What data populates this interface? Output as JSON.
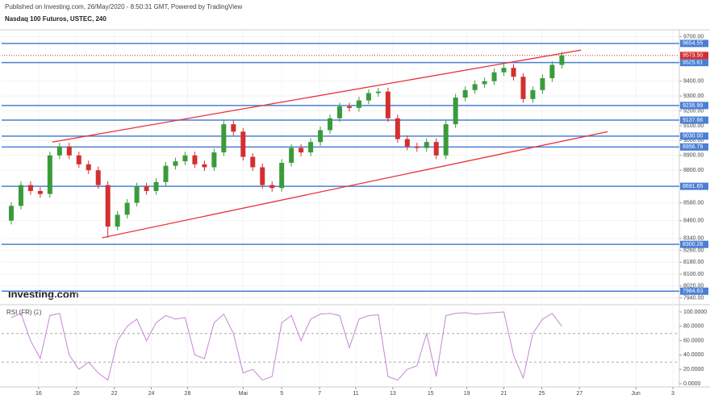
{
  "header": {
    "published": "Published on Investing.com, 26/May/2020 - 8:50:31 GMT, Powered by TradingView",
    "symbol": "Nasdaq 100 Futuros, USTEC, 240",
    "logo": "Investing.com"
  },
  "chart_data": [
    {
      "type": "candlestick",
      "grid": true,
      "up_color": "#3a9b3a",
      "down_color": "#d32f2f",
      "level_color": "#4a7fd4",
      "trend_color": "#e8303a",
      "x": [
        1,
        2,
        3,
        4,
        5,
        6,
        7,
        8,
        9,
        10,
        11,
        12,
        13,
        14,
        15,
        16,
        17,
        18,
        19,
        20,
        21,
        22,
        23,
        24,
        25,
        26,
        27,
        28,
        29,
        30,
        31,
        32,
        33,
        34,
        35,
        36,
        37,
        38,
        39,
        40,
        41,
        42,
        43,
        44,
        45,
        46,
        47,
        48,
        49,
        50,
        51,
        52,
        53,
        54,
        55,
        56,
        57,
        58
      ],
      "open": [
        8460,
        8560,
        8700,
        8660,
        8640,
        8900,
        8960,
        8900,
        8840,
        8800,
        8700,
        8420,
        8500,
        8580,
        8690,
        8660,
        8720,
        8830,
        8860,
        8900,
        8840,
        8820,
        8920,
        9110,
        9060,
        8890,
        8820,
        8700,
        8680,
        8850,
        8950,
        8920,
        8990,
        9070,
        9150,
        9230,
        9220,
        9270,
        9320,
        9330,
        9150,
        9010,
        8960,
        8950,
        8990,
        8900,
        9110,
        9290,
        9340,
        9380,
        9400,
        9460,
        9490,
        9430,
        9280,
        9340,
        9420,
        9510
      ],
      "high": [
        8585,
        8725,
        8725,
        8685,
        8925,
        8985,
        8985,
        8925,
        8865,
        8825,
        8725,
        8525,
        8605,
        8715,
        8715,
        8745,
        8855,
        8885,
        8925,
        8925,
        8865,
        8945,
        9135,
        9135,
        9085,
        8915,
        8845,
        8725,
        8875,
        8975,
        8975,
        9015,
        9095,
        9175,
        9255,
        9255,
        9295,
        9345,
        9355,
        9355,
        9175,
        9035,
        8985,
        9015,
        9015,
        9135,
        9315,
        9365,
        9405,
        9425,
        9485,
        9515,
        9515,
        9455,
        9365,
        9445,
        9535,
        9598.5
      ],
      "low": [
        8435,
        8535,
        8635,
        8615,
        8615,
        8875,
        8875,
        8815,
        8775,
        8675,
        8345,
        8395,
        8475,
        8555,
        8635,
        8635,
        8695,
        8805,
        8835,
        8815,
        8795,
        8795,
        8895,
        9035,
        8865,
        8795,
        8675,
        8655,
        8655,
        8825,
        8895,
        8895,
        8965,
        9045,
        9125,
        9195,
        9195,
        9245,
        9295,
        9125,
        8985,
        8935,
        8925,
        8925,
        8875,
        8875,
        9085,
        9265,
        9315,
        9355,
        9375,
        9435,
        9405,
        9255,
        9255,
        9315,
        9395,
        9485
      ],
      "close": [
        8560,
        8700,
        8660,
        8640,
        8900,
        8960,
        8900,
        8840,
        8800,
        8700,
        8420,
        8500,
        8580,
        8690,
        8660,
        8720,
        8830,
        8860,
        8900,
        8840,
        8820,
        8920,
        9110,
        9060,
        8890,
        8820,
        8700,
        8680,
        8850,
        8950,
        8920,
        8990,
        9070,
        9150,
        9230,
        9220,
        9270,
        9320,
        9330,
        9150,
        9010,
        8960,
        8950,
        8990,
        8900,
        9110,
        9290,
        9340,
        9380,
        9400,
        9460,
        9490,
        9430,
        9280,
        9340,
        9420,
        9510,
        9573.5
      ],
      "xlim": [
        0,
        70
      ],
      "ylim": [
        7910,
        9730
      ],
      "yticks": [
        {
          "value": 9700,
          "label": "9700.00"
        },
        {
          "value": 9400,
          "label": "9400.00"
        },
        {
          "value": 9300,
          "label": "9300.00"
        },
        {
          "value": 9200,
          "label": "9200.00"
        },
        {
          "value": 9100,
          "label": "9100.00"
        },
        {
          "value": 9000,
          "label": "9000.00"
        },
        {
          "value": 8900,
          "label": "8900.00"
        },
        {
          "value": 8800,
          "label": "8800.00"
        },
        {
          "value": 8580,
          "label": "8580.00"
        },
        {
          "value": 8460,
          "label": "8460.00"
        },
        {
          "value": 8340,
          "label": "8340.00"
        },
        {
          "value": 8260,
          "label": "8260.00"
        },
        {
          "value": 8180,
          "label": "8180.00"
        },
        {
          "value": 8100,
          "label": "8100.00"
        },
        {
          "value": 8020,
          "label": "8020.00"
        },
        {
          "value": 7940,
          "label": "7940.00"
        }
      ],
      "xticks": [
        {
          "value": 3.83,
          "label": "16"
        },
        {
          "value": 7.75,
          "label": "20"
        },
        {
          "value": 11.67,
          "label": "22"
        },
        {
          "value": 15.5,
          "label": "24"
        },
        {
          "value": 19.25,
          "label": "28"
        },
        {
          "value": 25,
          "label": "Mai"
        },
        {
          "value": 29,
          "label": "5"
        },
        {
          "value": 32.92,
          "label": "7"
        },
        {
          "value": 36.67,
          "label": "11"
        },
        {
          "value": 40.5,
          "label": "13"
        },
        {
          "value": 44.42,
          "label": "15"
        },
        {
          "value": 48.17,
          "label": "19"
        },
        {
          "value": 52,
          "label": "21"
        },
        {
          "value": 55.92,
          "label": "25"
        },
        {
          "value": 59.83,
          "label": "27"
        },
        {
          "value": 65.67,
          "label": "Jun"
        },
        {
          "value": 69.5,
          "label": "3"
        }
      ],
      "levels": [
        9654.55,
        9525.61,
        9235.99,
        9137.66,
        9030,
        8956.79,
        8691.65,
        8300.28,
        7984.63
      ],
      "level_labels": [
        "9654.55",
        "9525.61",
        "9235.99",
        "9137.66",
        "9030.00",
        "8956.79",
        "8691.65",
        "8300.28",
        "7984.63"
      ],
      "last_price": 9573.5,
      "last_price_label": "9573.50",
      "trendlines": [
        {
          "x": [
            5.25,
            60
          ],
          "y": [
            8990,
            9610
          ]
        },
        {
          "x": [
            10.42,
            62.75
          ],
          "y": [
            8345,
            9060
          ]
        }
      ]
    },
    {
      "type": "line",
      "title": "RSI (FR) (2)",
      "color": "#c586d6",
      "values": [
        92,
        98,
        60,
        35,
        95,
        98,
        40,
        20,
        30,
        15,
        5,
        60,
        80,
        90,
        60,
        85,
        95,
        90,
        92,
        40,
        35,
        85,
        97,
        70,
        15,
        20,
        5,
        10,
        85,
        95,
        60,
        90,
        97,
        98,
        95,
        50,
        90,
        95,
        96,
        10,
        5,
        20,
        25,
        70,
        10,
        95,
        98,
        99,
        97,
        98,
        99,
        100,
        40,
        8,
        70,
        90,
        98,
        80
      ],
      "ylim": [
        0,
        100
      ],
      "levels": [
        70,
        30
      ],
      "yticks": [
        {
          "value": 100,
          "label": "100.0000"
        },
        {
          "value": 80,
          "label": "80.0000"
        },
        {
          "value": 60,
          "label": "60.0000"
        },
        {
          "value": 40,
          "label": "40.0000"
        },
        {
          "value": 20,
          "label": "20.0000"
        },
        {
          "value": 0,
          "label": "0.0000"
        }
      ]
    }
  ]
}
